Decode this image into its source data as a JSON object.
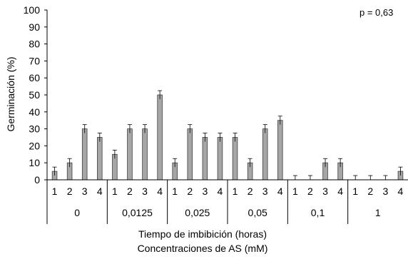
{
  "chart_data": {
    "type": "bar",
    "ylabel": "Germinación (%)",
    "xlabel_line1": "Tiempo de imbibición (horas)",
    "xlabel_line2": "Concentraciones de AS (mM)",
    "ylim": [
      0,
      100
    ],
    "yticks": [
      0,
      10,
      20,
      30,
      40,
      50,
      60,
      70,
      80,
      90,
      100
    ],
    "annotation": "p = 0,63",
    "grid": false,
    "bar_color": "#a6a6a6",
    "groups": [
      {
        "label": "0",
        "categories": [
          "1",
          "2",
          "3",
          "4"
        ],
        "values": [
          5,
          10,
          30,
          25
        ],
        "errors": [
          2.5,
          2.5,
          2.5,
          2.5
        ]
      },
      {
        "label": "0,0125",
        "categories": [
          "1",
          "2",
          "3",
          "4"
        ],
        "values": [
          15,
          30,
          30,
          50
        ],
        "errors": [
          2.5,
          2.5,
          2.5,
          2.5
        ]
      },
      {
        "label": "0,025",
        "categories": [
          "1",
          "2",
          "3",
          "4"
        ],
        "values": [
          10,
          30,
          25,
          25
        ],
        "errors": [
          2.5,
          2.5,
          2.5,
          2.5
        ]
      },
      {
        "label": "0,05",
        "categories": [
          "1",
          "2",
          "3",
          "4"
        ],
        "values": [
          25,
          10,
          30,
          35
        ],
        "errors": [
          2.5,
          2.5,
          2.5,
          2.5
        ]
      },
      {
        "label": "0,1",
        "categories": [
          "1",
          "2",
          "3",
          "4"
        ],
        "values": [
          0,
          0,
          10,
          10
        ],
        "errors": [
          2.5,
          2.5,
          2.5,
          2.5
        ]
      },
      {
        "label": "1",
        "categories": [
          "1",
          "2",
          "3",
          "4"
        ],
        "values": [
          0,
          0,
          0,
          5
        ],
        "errors": [
          2.5,
          2.5,
          2.5,
          2.5
        ]
      }
    ]
  }
}
